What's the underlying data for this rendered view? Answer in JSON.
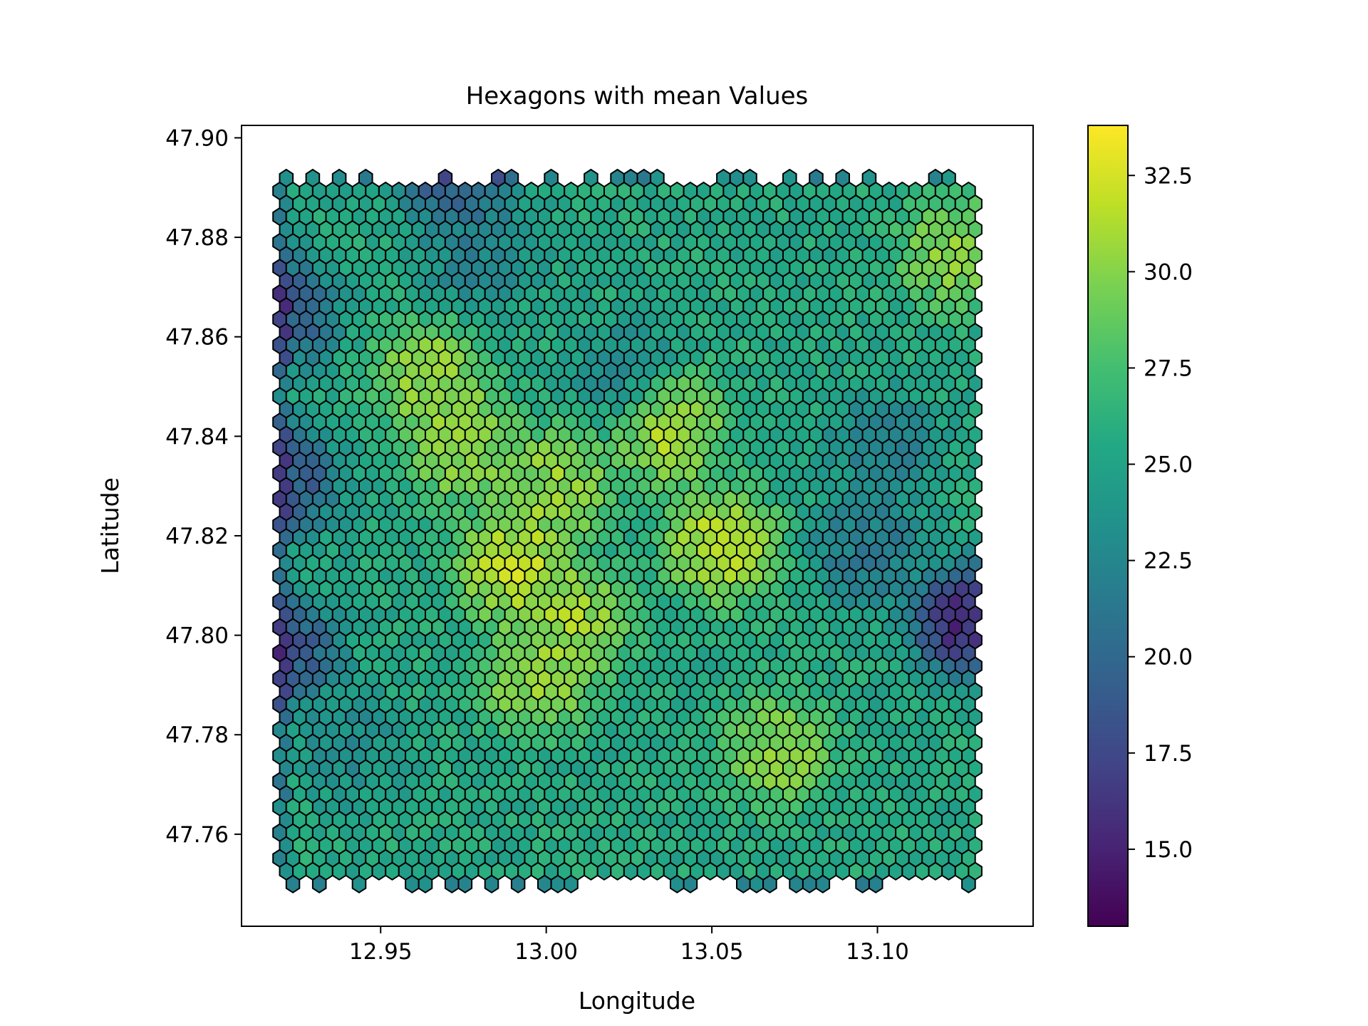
{
  "chart_data": {
    "type": "heatmap",
    "title": "Hexagons with mean Values",
    "xlabel": "Longitude",
    "ylabel": "Latitude",
    "xlim": [
      12.908,
      13.147
    ],
    "ylim": [
      47.7415,
      47.9025
    ],
    "xticks": [
      12.95,
      13.0,
      13.05,
      13.1
    ],
    "xtick_labels": [
      "12.95",
      "13.00",
      "13.05",
      "13.10"
    ],
    "yticks": [
      47.76,
      47.78,
      47.8,
      47.82,
      47.84,
      47.86,
      47.88,
      47.9
    ],
    "ytick_labels": [
      "47.76",
      "47.78",
      "47.80",
      "47.82",
      "47.84",
      "47.86",
      "47.88",
      "47.90"
    ],
    "colorbar": {
      "colormap": "viridis",
      "range": [
        13.0,
        33.8
      ],
      "ticks": [
        15.0,
        17.5,
        20.0,
        22.5,
        25.0,
        27.5,
        30.0,
        32.5
      ],
      "tick_labels": [
        "15.0",
        "17.5",
        "20.0",
        "22.5",
        "25.0",
        "27.5",
        "30.0",
        "32.5"
      ]
    },
    "grid": {
      "lon_start": 12.9195,
      "lon_end": 13.1305,
      "lat_start": 47.75,
      "lat_end": 47.8925,
      "row_step_lat": 0.00258,
      "col_step_lon": 0.004
    },
    "value_hotspots": [
      {
        "lon": 13.053,
        "lat": 47.818,
        "value": 33.0
      },
      {
        "lon": 12.99,
        "lat": 47.814,
        "value": 33.3
      },
      {
        "lon": 13.037,
        "lat": 47.842,
        "value": 32.5
      },
      {
        "lon": 12.975,
        "lat": 47.838,
        "value": 31.5
      },
      {
        "lon": 13.003,
        "lat": 47.83,
        "value": 31.5
      },
      {
        "lon": 13.008,
        "lat": 47.803,
        "value": 32.0
      },
      {
        "lon": 12.997,
        "lat": 47.791,
        "value": 31.5
      },
      {
        "lon": 12.965,
        "lat": 47.852,
        "value": 31.5
      },
      {
        "lon": 13.124,
        "lat": 47.877,
        "value": 31.0
      },
      {
        "lon": 13.07,
        "lat": 47.777,
        "value": 31.0
      },
      {
        "lon": 13.097,
        "lat": 47.817,
        "value": 20.5
      },
      {
        "lon": 13.102,
        "lat": 47.838,
        "value": 21.5
      },
      {
        "lon": 12.98,
        "lat": 47.877,
        "value": 21.5
      },
      {
        "lon": 13.024,
        "lat": 47.853,
        "value": 22.5
      },
      {
        "lon": 12.94,
        "lat": 47.778,
        "value": 22.5
      },
      {
        "lon": 13.128,
        "lat": 47.803,
        "value": 13.0
      },
      {
        "lon": 12.92,
        "lat": 47.797,
        "value": 17.0
      },
      {
        "lon": 12.92,
        "lat": 47.831,
        "value": 17.0
      },
      {
        "lon": 12.92,
        "lat": 47.865,
        "value": 17.5
      },
      {
        "lon": 12.973,
        "lat": 47.892,
        "value": 17.5
      }
    ],
    "base_value": 25.5
  }
}
